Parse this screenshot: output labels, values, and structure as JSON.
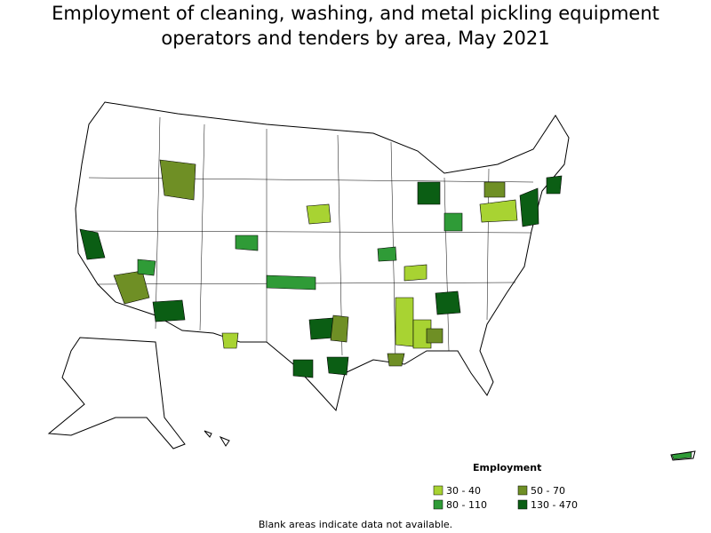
{
  "title_lines": [
    "Employment of cleaning, washing, and metal pickling equipment",
    "operators and tenders by area, May 2021"
  ],
  "legend": {
    "title": "Employment",
    "items": [
      {
        "label": "30 - 40",
        "color": "#a8d332"
      },
      {
        "label": "50 - 70",
        "color": "#6f8f25"
      },
      {
        "label": "80 - 110",
        "color": "#2f9b37"
      },
      {
        "label": "130 - 470",
        "color": "#0b5e14"
      }
    ]
  },
  "note": "Blank areas indicate data not available."
}
